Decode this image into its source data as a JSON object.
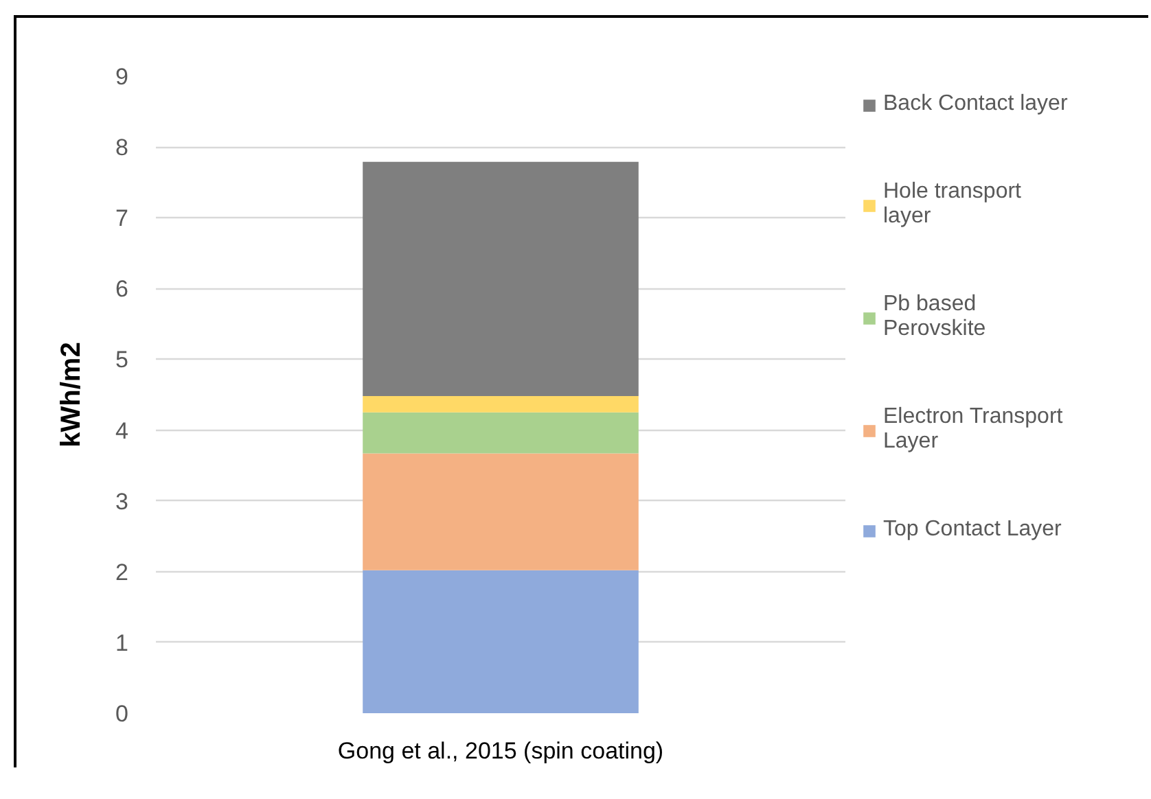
{
  "chart_data": {
    "type": "bar",
    "stacked": true,
    "ylabel": "kWh/m2",
    "categories": [
      "Gong et al., 2015 (spin coating)"
    ],
    "series": [
      {
        "name": "Top Contact Layer",
        "color": "#8faadc",
        "values": [
          2.02
        ]
      },
      {
        "name": "Electron Transport Layer",
        "color": "#f4b183",
        "values": [
          1.65
        ]
      },
      {
        "name": "Pb based Perovskite",
        "color": "#a9d18e",
        "values": [
          0.58
        ]
      },
      {
        "name": "Hole transport layer",
        "color": "#ffd966",
        "values": [
          0.23
        ]
      },
      {
        "name": "Back Contact layer",
        "color": "#7f7f7f",
        "values": [
          3.31
        ]
      }
    ],
    "ylim": [
      0,
      9
    ],
    "yticks": [
      0,
      1,
      2,
      3,
      4,
      5,
      6,
      7,
      8,
      9
    ],
    "grid": "y",
    "legend": "right"
  }
}
